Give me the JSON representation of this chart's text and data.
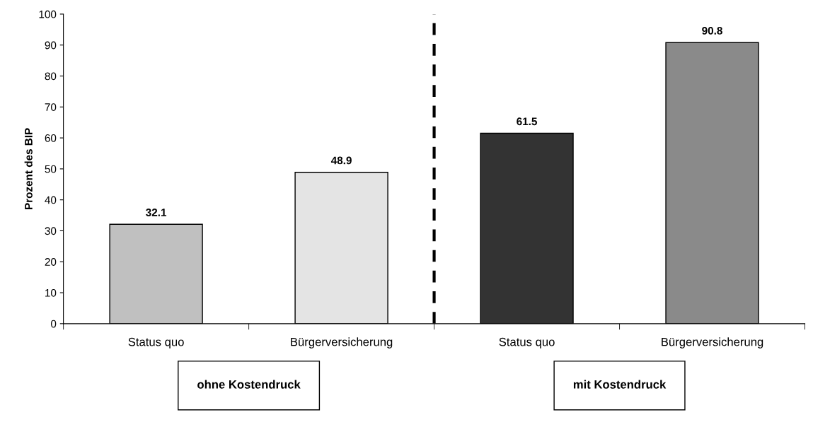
{
  "chart_data": {
    "type": "bar",
    "ylabel": "Prozent des BIP",
    "categories": [
      "Status quo",
      "Bürgerversicherung",
      "Status quo",
      "Bürgerversicherung"
    ],
    "values": [
      32.1,
      48.9,
      61.5,
      90.8
    ],
    "colors": [
      "#c0c0c0",
      "#e4e4e4",
      "#333333",
      "#8a8a8a"
    ],
    "ylim": [
      0,
      100
    ],
    "yticks": [
      0,
      10,
      20,
      30,
      40,
      50,
      60,
      70,
      80,
      90,
      100
    ],
    "data_labels": true,
    "grid": false,
    "legend": false,
    "annotations": [
      "ohne Kostendruck",
      "mit Kostendruck"
    ]
  }
}
